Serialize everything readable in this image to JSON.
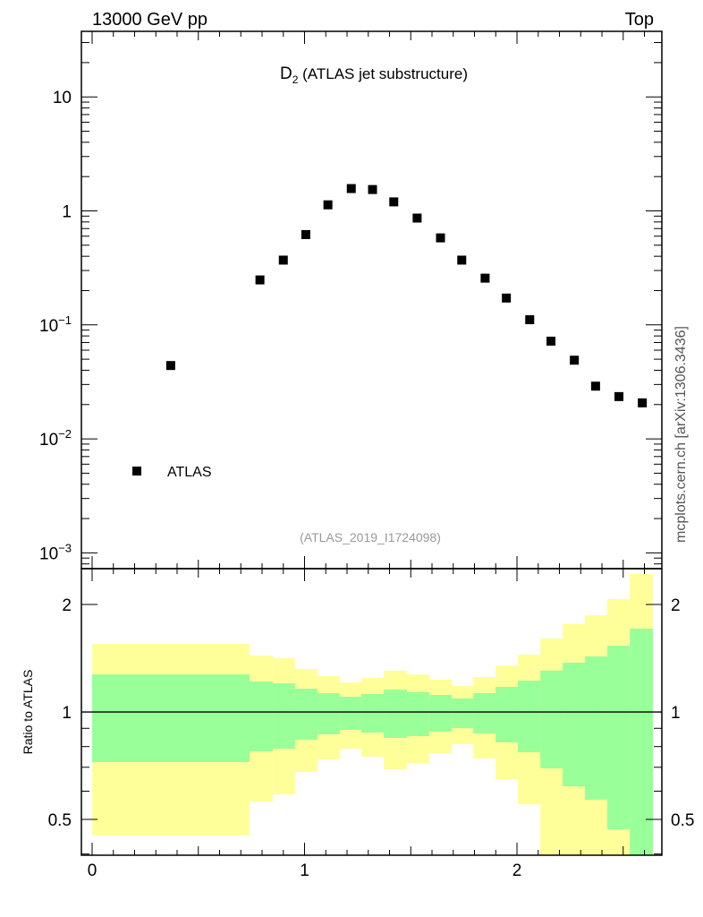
{
  "header": {
    "energy_label": "13000 GeV pp",
    "process_label": "Top"
  },
  "watermark": "mcplots.cern.ch [arXiv:1306.3436]",
  "colors": {
    "yellow": "#ffff99",
    "green": "#99ff99",
    "marker": "#000000",
    "analysis_text": "#999999"
  },
  "chart_data": [
    {
      "type": "scatter",
      "title_main": "D",
      "title_sub": "2",
      "title_rest": " (ATLAS jet substructure)",
      "analysis_id": "(ATLAS_2019_I1724098)",
      "yscale": "log",
      "xlim": [
        -0.0505,
        2.682
      ],
      "ylim": [
        0.000727,
        37.6
      ],
      "x_ticks": [
        0,
        1,
        2
      ],
      "x_tick_labels": [
        "0",
        "1",
        "2"
      ],
      "y_ticks": [
        10,
        1,
        0.1,
        0.01,
        0.001
      ],
      "y_tick_labels": [
        {
          "base": "10",
          "exp": ""
        },
        {
          "base": "1",
          "exp": ""
        },
        {
          "base": "10",
          "exp": "−1"
        },
        {
          "base": "10",
          "exp": "−2"
        },
        {
          "base": "10",
          "exp": "−3"
        }
      ],
      "legend": {
        "position": "bottom-left",
        "entries": [
          "ATLAS"
        ]
      },
      "series": [
        {
          "name": "ATLAS",
          "x": [
            0.37,
            0.79,
            0.9,
            1.006,
            1.11,
            1.22,
            1.32,
            1.42,
            1.53,
            1.64,
            1.74,
            1.85,
            1.95,
            2.06,
            2.16,
            2.27,
            2.37,
            2.48,
            2.59
          ],
          "y": [
            0.044,
            0.248,
            0.37,
            0.62,
            1.13,
            1.57,
            1.54,
            1.2,
            0.865,
            0.58,
            0.37,
            0.257,
            0.172,
            0.111,
            0.072,
            0.049,
            0.029,
            0.0235,
            0.0207
          ]
        }
      ]
    },
    {
      "type": "area",
      "ylabel": "Ratio to ATLAS",
      "yscale": "log",
      "xlim": [
        -0.0505,
        2.682
      ],
      "ylim": [
        0.397,
        2.52
      ],
      "y_ticks": [
        0.5,
        1,
        2
      ],
      "y_tick_labels": [
        "0.5",
        "1",
        "2"
      ],
      "x_ticks": [
        0,
        1,
        2
      ],
      "x_tick_labels": [
        "0",
        "1",
        "2"
      ],
      "bin_edges": [
        0,
        0.741,
        0.851,
        0.956,
        1.061,
        1.166,
        1.267,
        1.373,
        1.482,
        1.587,
        1.693,
        1.794,
        1.899,
        2.004,
        2.11,
        2.215,
        2.32,
        2.425,
        2.531,
        2.64
      ],
      "yellow_band": {
        "upper": [
          1.551,
          1.439,
          1.414,
          1.319,
          1.26,
          1.21,
          1.245,
          1.305,
          1.274,
          1.231,
          1.182,
          1.253,
          1.35,
          1.447,
          1.606,
          1.762,
          1.866,
          2.071,
          2.434
        ],
        "lower": [
          0.451,
          0.561,
          0.588,
          0.679,
          0.736,
          0.789,
          0.749,
          0.691,
          0.719,
          0.767,
          0.812,
          0.741,
          0.648,
          0.551,
          0.3,
          0.3,
          0.3,
          0.3,
          0.3
        ]
      },
      "green_band": {
        "upper": [
          1.274,
          1.217,
          1.203,
          1.162,
          1.129,
          1.103,
          1.123,
          1.155,
          1.136,
          1.116,
          1.091,
          1.129,
          1.176,
          1.224,
          1.305,
          1.374,
          1.431,
          1.533,
          1.711
        ],
        "lower": [
          0.724,
          0.776,
          0.789,
          0.836,
          0.866,
          0.891,
          0.876,
          0.846,
          0.856,
          0.881,
          0.901,
          0.871,
          0.822,
          0.771,
          0.695,
          0.619,
          0.568,
          0.469,
          0.3
        ]
      },
      "reference_line": 1
    }
  ]
}
